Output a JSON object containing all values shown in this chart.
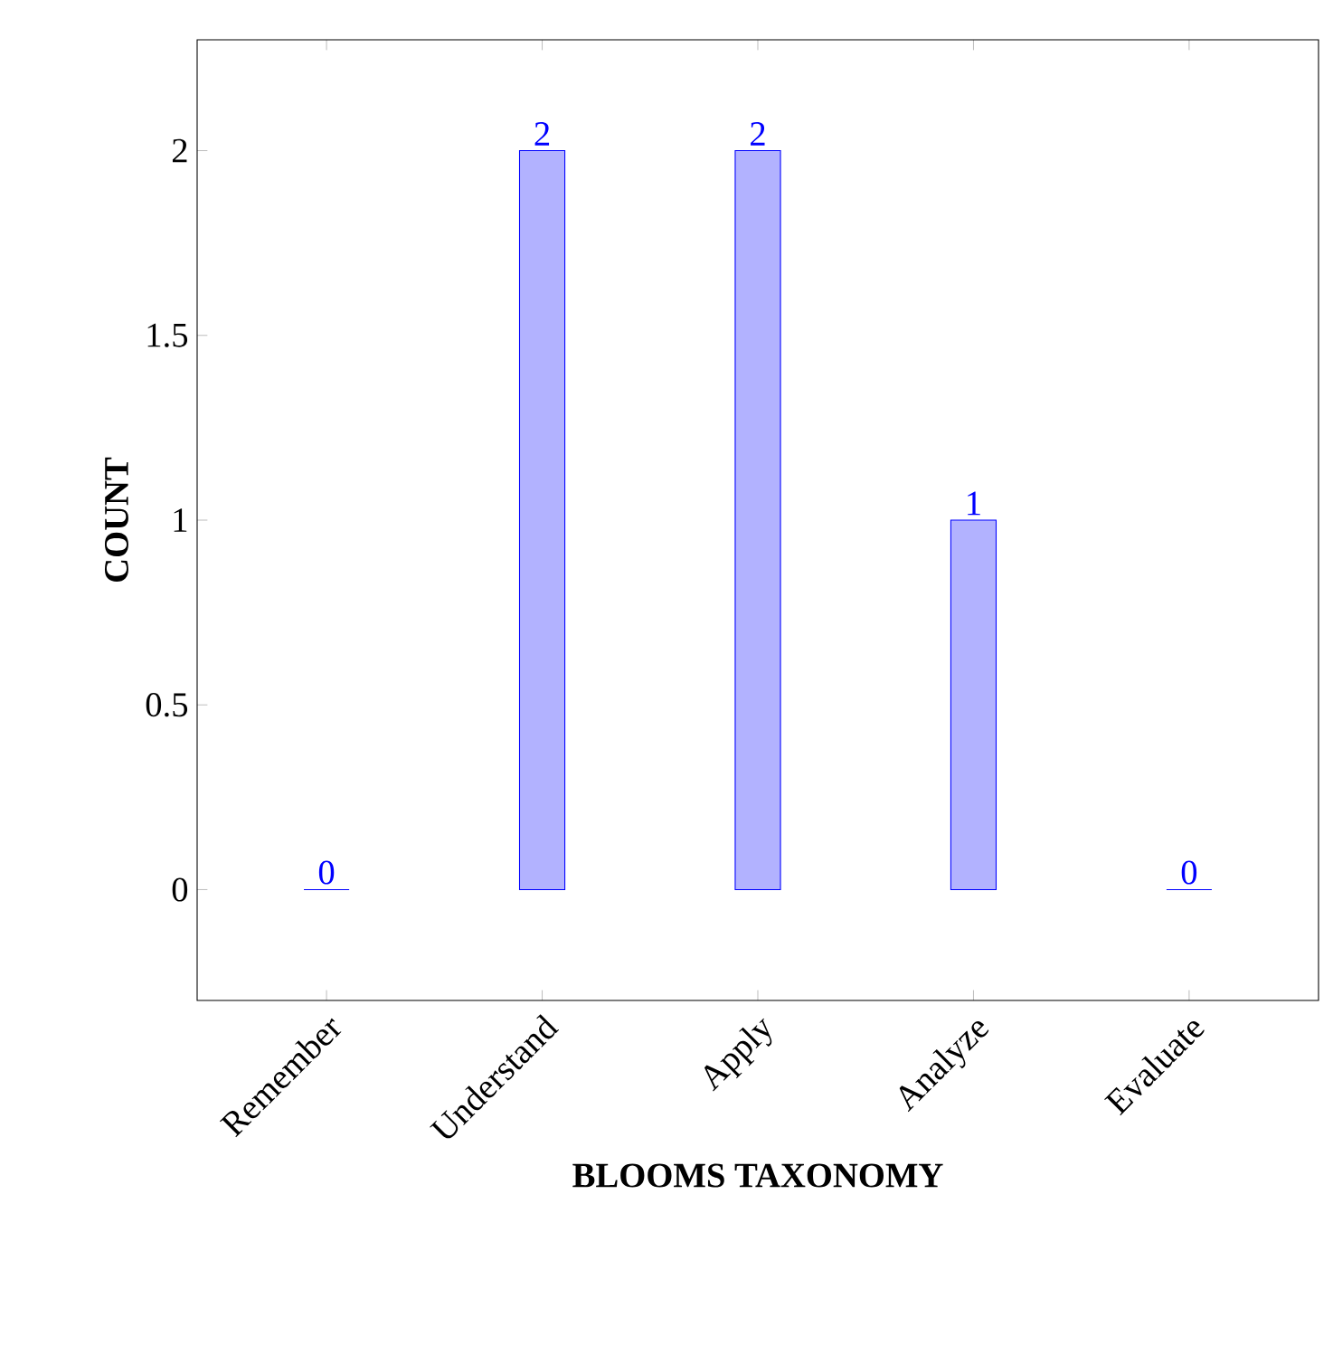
{
  "chart_data": {
    "type": "bar",
    "xlabel": "BLOOMS TAXONOMY",
    "ylabel": "COUNT",
    "categories": [
      "Remember",
      "Understand",
      "Apply",
      "Analyze",
      "Evaluate"
    ],
    "values": [
      0,
      2,
      2,
      1,
      0
    ],
    "color": "#0000ff",
    "ylim": [
      -0.3,
      2.3
    ],
    "yticks": [
      0,
      0.5,
      1,
      1.5,
      2
    ],
    "data_labels": true,
    "grid": false
  }
}
